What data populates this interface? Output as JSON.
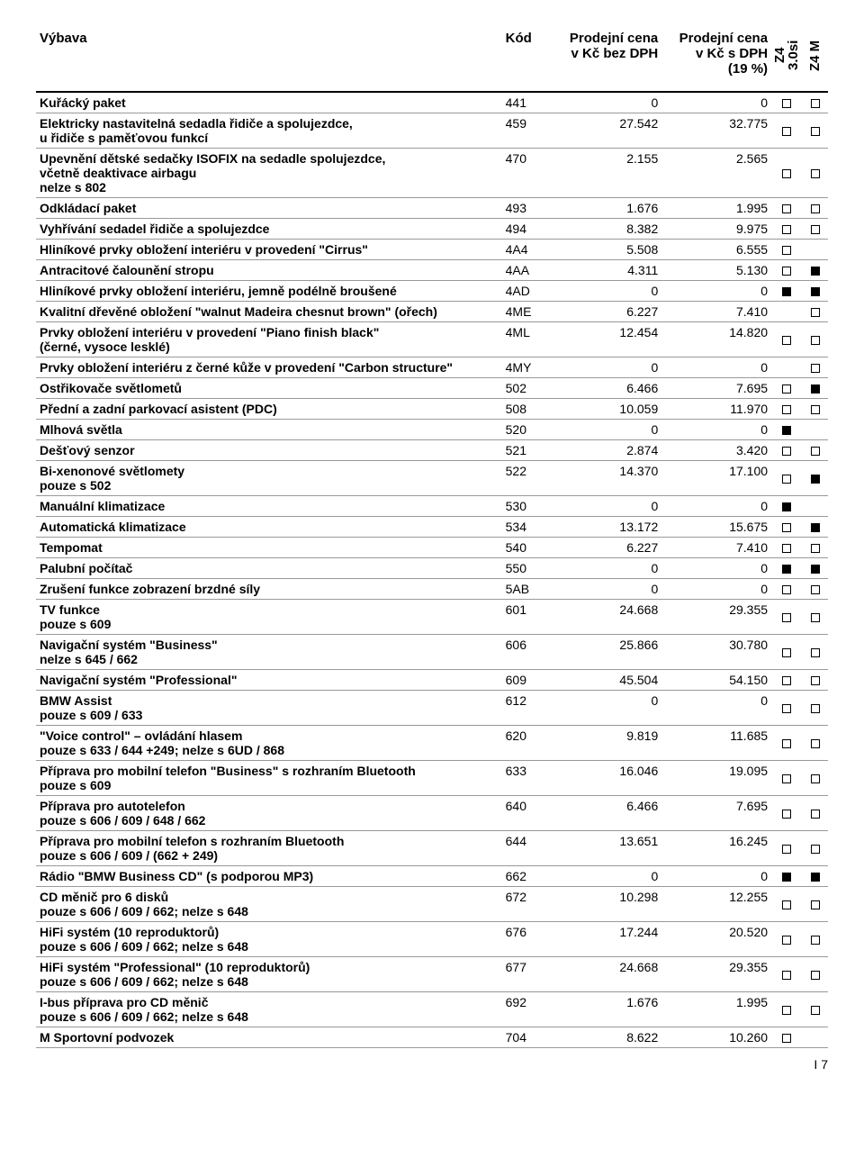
{
  "header": {
    "name": "Výbava",
    "code": "Kód",
    "price_ex": "Prodejní cena\nv Kč bez DPH",
    "price_inc": "Prodejní cena\nv Kč s DPH\n(19 %)",
    "model1": "Z4 3.0si",
    "model2": "Z4 M"
  },
  "page_number": "7",
  "rows": [
    {
      "name": "Kuřácký paket",
      "note": "",
      "code": "441",
      "p1": "0",
      "p2": "0",
      "m1": "o",
      "m2": "o"
    },
    {
      "name": "Elektricky nastavitelná sedadla řidiče a spolujezdce,\nu řidiče s paměťovou funkcí",
      "note": "",
      "code": "459",
      "p1": "27.542",
      "p2": "32.775",
      "m1": "o",
      "m2": "o"
    },
    {
      "name": "Upevnění dětské sedačky ISOFIX na sedadle spolujezdce,\nvčetně deaktivace airbagu",
      "note": "nelze s 802",
      "code": "470",
      "p1": "2.155",
      "p2": "2.565",
      "m1": "o",
      "m2": "o"
    },
    {
      "name": "Odkládací paket",
      "note": "",
      "code": "493",
      "p1": "1.676",
      "p2": "1.995",
      "m1": "o",
      "m2": "o"
    },
    {
      "name": "Vyhřívání sedadel řidiče a spolujezdce",
      "note": "",
      "code": "494",
      "p1": "8.382",
      "p2": "9.975",
      "m1": "o",
      "m2": "o"
    },
    {
      "name": "Hliníkové prvky obložení interiéru v provedení \"Cirrus\"",
      "note": "",
      "code": "4A4",
      "p1": "5.508",
      "p2": "6.555",
      "m1": "o",
      "m2": ""
    },
    {
      "name": "Antracitové čalounění stropu",
      "note": "",
      "code": "4AA",
      "p1": "4.311",
      "p2": "5.130",
      "m1": "o",
      "m2": "s"
    },
    {
      "name": "Hliníkové prvky obložení interiéru, jemně podélně broušené",
      "note": "",
      "code": "4AD",
      "p1": "0",
      "p2": "0",
      "m1": "s",
      "m2": "s"
    },
    {
      "name": "Kvalitní dřevěné obložení \"walnut Madeira chesnut brown\" (ořech)",
      "note": "",
      "code": "4ME",
      "p1": "6.227",
      "p2": "7.410",
      "m1": "",
      "m2": "o"
    },
    {
      "name": "Prvky obložení interiéru v provedení \"Piano finish  black\"\n(černé, vysoce lesklé)",
      "note": "",
      "code": "4ML",
      "p1": "12.454",
      "p2": "14.820",
      "m1": "o",
      "m2": "o"
    },
    {
      "name": "Prvky obložení interiéru z černé kůže v provedení \"Carbon structure\"",
      "note": "",
      "code": "4MY",
      "p1": "0",
      "p2": "0",
      "m1": "",
      "m2": "o"
    },
    {
      "name": "Ostřikovače světlometů",
      "note": "",
      "code": "502",
      "p1": "6.466",
      "p2": "7.695",
      "m1": "o",
      "m2": "s"
    },
    {
      "name": "Přední a zadní parkovací asistent (PDC)",
      "note": "",
      "code": "508",
      "p1": "10.059",
      "p2": "11.970",
      "m1": "o",
      "m2": "o"
    },
    {
      "name": "Mlhová světla",
      "note": "",
      "code": "520",
      "p1": "0",
      "p2": "0",
      "m1": "s",
      "m2": ""
    },
    {
      "name": "Dešťový senzor",
      "note": "",
      "code": "521",
      "p1": "2.874",
      "p2": "3.420",
      "m1": "o",
      "m2": "o"
    },
    {
      "name": "Bi-xenonové světlomety",
      "note": "pouze s 502",
      "code": "522",
      "p1": "14.370",
      "p2": "17.100",
      "m1": "o",
      "m2": "s"
    },
    {
      "name": "Manuální klimatizace",
      "note": "",
      "code": "530",
      "p1": "0",
      "p2": "0",
      "m1": "s",
      "m2": ""
    },
    {
      "name": "Automatická klimatizace",
      "note": "",
      "code": "534",
      "p1": "13.172",
      "p2": "15.675",
      "m1": "o",
      "m2": "s"
    },
    {
      "name": "Tempomat",
      "note": "",
      "code": "540",
      "p1": "6.227",
      "p2": "7.410",
      "m1": "o",
      "m2": "o"
    },
    {
      "name": "Palubní počítač",
      "note": "",
      "code": "550",
      "p1": "0",
      "p2": "0",
      "m1": "s",
      "m2": "s"
    },
    {
      "name": "Zrušení funkce zobrazení brzdné síly",
      "note": "",
      "code": "5AB",
      "p1": "0",
      "p2": "0",
      "m1": "o",
      "m2": "o"
    },
    {
      "name": "TV funkce",
      "note": "pouze s 609",
      "code": "601",
      "p1": "24.668",
      "p2": "29.355",
      "m1": "o",
      "m2": "o"
    },
    {
      "name": "Navigační systém \"Business\"",
      "note": "nelze s 645 / 662",
      "code": "606",
      "p1": "25.866",
      "p2": "30.780",
      "m1": "o",
      "m2": "o"
    },
    {
      "name": "Navigační systém \"Professional\"",
      "note": "",
      "code": "609",
      "p1": "45.504",
      "p2": "54.150",
      "m1": "o",
      "m2": "o"
    },
    {
      "name": "BMW Assist",
      "note": "pouze s 609 / 633",
      "code": "612",
      "p1": "0",
      "p2": "0",
      "m1": "o",
      "m2": "o"
    },
    {
      "name": "\"Voice control\" – ovládání hlasem",
      "note": "pouze s 633 / 644 +249; nelze s 6UD / 868",
      "code": "620",
      "p1": "9.819",
      "p2": "11.685",
      "m1": "o",
      "m2": "o"
    },
    {
      "name": "Příprava pro mobilní telefon \"Business\" s rozhraním Bluetooth",
      "note": "pouze s 609",
      "code": "633",
      "p1": "16.046",
      "p2": "19.095",
      "m1": "o",
      "m2": "o"
    },
    {
      "name": "Příprava pro autotelefon",
      "note": "pouze s 606 / 609 / 648 / 662",
      "code": "640",
      "p1": "6.466",
      "p2": "7.695",
      "m1": "o",
      "m2": "o"
    },
    {
      "name": "Příprava pro mobilní telefon s rozhraním Bluetooth",
      "note": "pouze s 606 / 609 / (662 + 249)",
      "code": "644",
      "p1": "13.651",
      "p2": "16.245",
      "m1": "o",
      "m2": "o"
    },
    {
      "name": "Rádio \"BMW Business CD\" (s podporou MP3)",
      "note": "",
      "code": "662",
      "p1": "0",
      "p2": "0",
      "m1": "s",
      "m2": "s"
    },
    {
      "name": "CD měnič pro 6 disků",
      "note": "pouze s 606 / 609 / 662; nelze s 648",
      "code": "672",
      "p1": "10.298",
      "p2": "12.255",
      "m1": "o",
      "m2": "o"
    },
    {
      "name": "HiFi systém (10 reproduktorů)",
      "note": "pouze s 606 / 609 / 662; nelze s 648",
      "code": "676",
      "p1": "17.244",
      "p2": "20.520",
      "m1": "o",
      "m2": "o"
    },
    {
      "name": "HiFi systém \"Professional\" (10 reproduktorů)",
      "note": "pouze s 606 / 609 / 662; nelze s 648",
      "code": "677",
      "p1": "24.668",
      "p2": "29.355",
      "m1": "o",
      "m2": "o"
    },
    {
      "name": "I-bus příprava pro CD měnič",
      "note": "pouze s 606 / 609 / 662; nelze s 648",
      "code": "692",
      "p1": "1.676",
      "p2": "1.995",
      "m1": "o",
      "m2": "o"
    },
    {
      "name": "M Sportovní podvozek",
      "note": "",
      "code": "704",
      "p1": "8.622",
      "p2": "10.260",
      "m1": "o",
      "m2": ""
    }
  ]
}
